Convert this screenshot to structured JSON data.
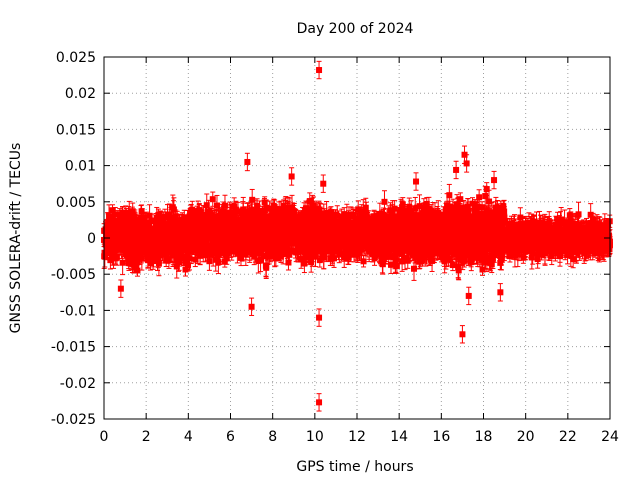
{
  "chart_data": {
    "type": "scatter",
    "title": "Day 200 of 2024",
    "xlabel": "GPS time / hours",
    "ylabel": "GNSS SOLERA-drift / TECUs",
    "xlim": [
      0,
      24
    ],
    "ylim": [
      -0.025,
      0.025
    ],
    "grid": true,
    "x_ticks": [
      0,
      2,
      4,
      6,
      8,
      10,
      12,
      14,
      16,
      18,
      20,
      22,
      24
    ],
    "x_tick_labels": [
      "0",
      "2",
      "4",
      "6",
      "8",
      "10",
      "12",
      "14",
      "16",
      "18",
      "20",
      "22",
      "24"
    ],
    "y_ticks": [
      -0.025,
      -0.02,
      -0.015,
      -0.01,
      -0.005,
      0,
      0.005,
      0.01,
      0.015,
      0.02,
      0.025
    ],
    "y_tick_labels": [
      "-0.025",
      "-0.02",
      "-0.015",
      "-0.01",
      "-0.005",
      "0",
      "0.005",
      "0.01",
      "0.015",
      "0.02",
      "0.025"
    ],
    "series": [
      {
        "color": "#ff0000",
        "marker": "square",
        "error_bars": true,
        "typical_error": 0.0012,
        "bulk_spread": [
          {
            "x_start": 0.0,
            "x_end": 4.0,
            "y_min": -0.006,
            "y_max": 0.006
          },
          {
            "x_start": 4.0,
            "x_end": 7.0,
            "y_min": -0.005,
            "y_max": 0.007
          },
          {
            "x_start": 7.0,
            "x_end": 10.0,
            "y_min": -0.006,
            "y_max": 0.0075
          },
          {
            "x_start": 10.0,
            "x_end": 13.0,
            "y_min": -0.005,
            "y_max": 0.006
          },
          {
            "x_start": 13.0,
            "x_end": 16.0,
            "y_min": -0.006,
            "y_max": 0.007
          },
          {
            "x_start": 16.0,
            "x_end": 19.0,
            "y_min": -0.0065,
            "y_max": 0.008
          },
          {
            "x_start": 19.0,
            "x_end": 24.0,
            "y_min": -0.004,
            "y_max": 0.004
          }
        ],
        "outliers": [
          {
            "x": 10.2,
            "y": 0.0232
          },
          {
            "x": 10.2,
            "y": -0.0227
          },
          {
            "x": 10.2,
            "y": -0.011
          },
          {
            "x": 6.8,
            "y": 0.0105
          },
          {
            "x": 7.0,
            "y": -0.0095
          },
          {
            "x": 8.9,
            "y": 0.0085
          },
          {
            "x": 17.1,
            "y": 0.0115
          },
          {
            "x": 17.0,
            "y": -0.0133
          },
          {
            "x": 17.2,
            "y": 0.0103
          },
          {
            "x": 16.7,
            "y": 0.0094
          },
          {
            "x": 0.8,
            "y": -0.007
          },
          {
            "x": 18.5,
            "y": 0.008
          },
          {
            "x": 18.8,
            "y": -0.0075
          },
          {
            "x": 17.3,
            "y": -0.008
          },
          {
            "x": 14.8,
            "y": 0.0078
          },
          {
            "x": 10.4,
            "y": 0.0075
          }
        ]
      }
    ]
  }
}
